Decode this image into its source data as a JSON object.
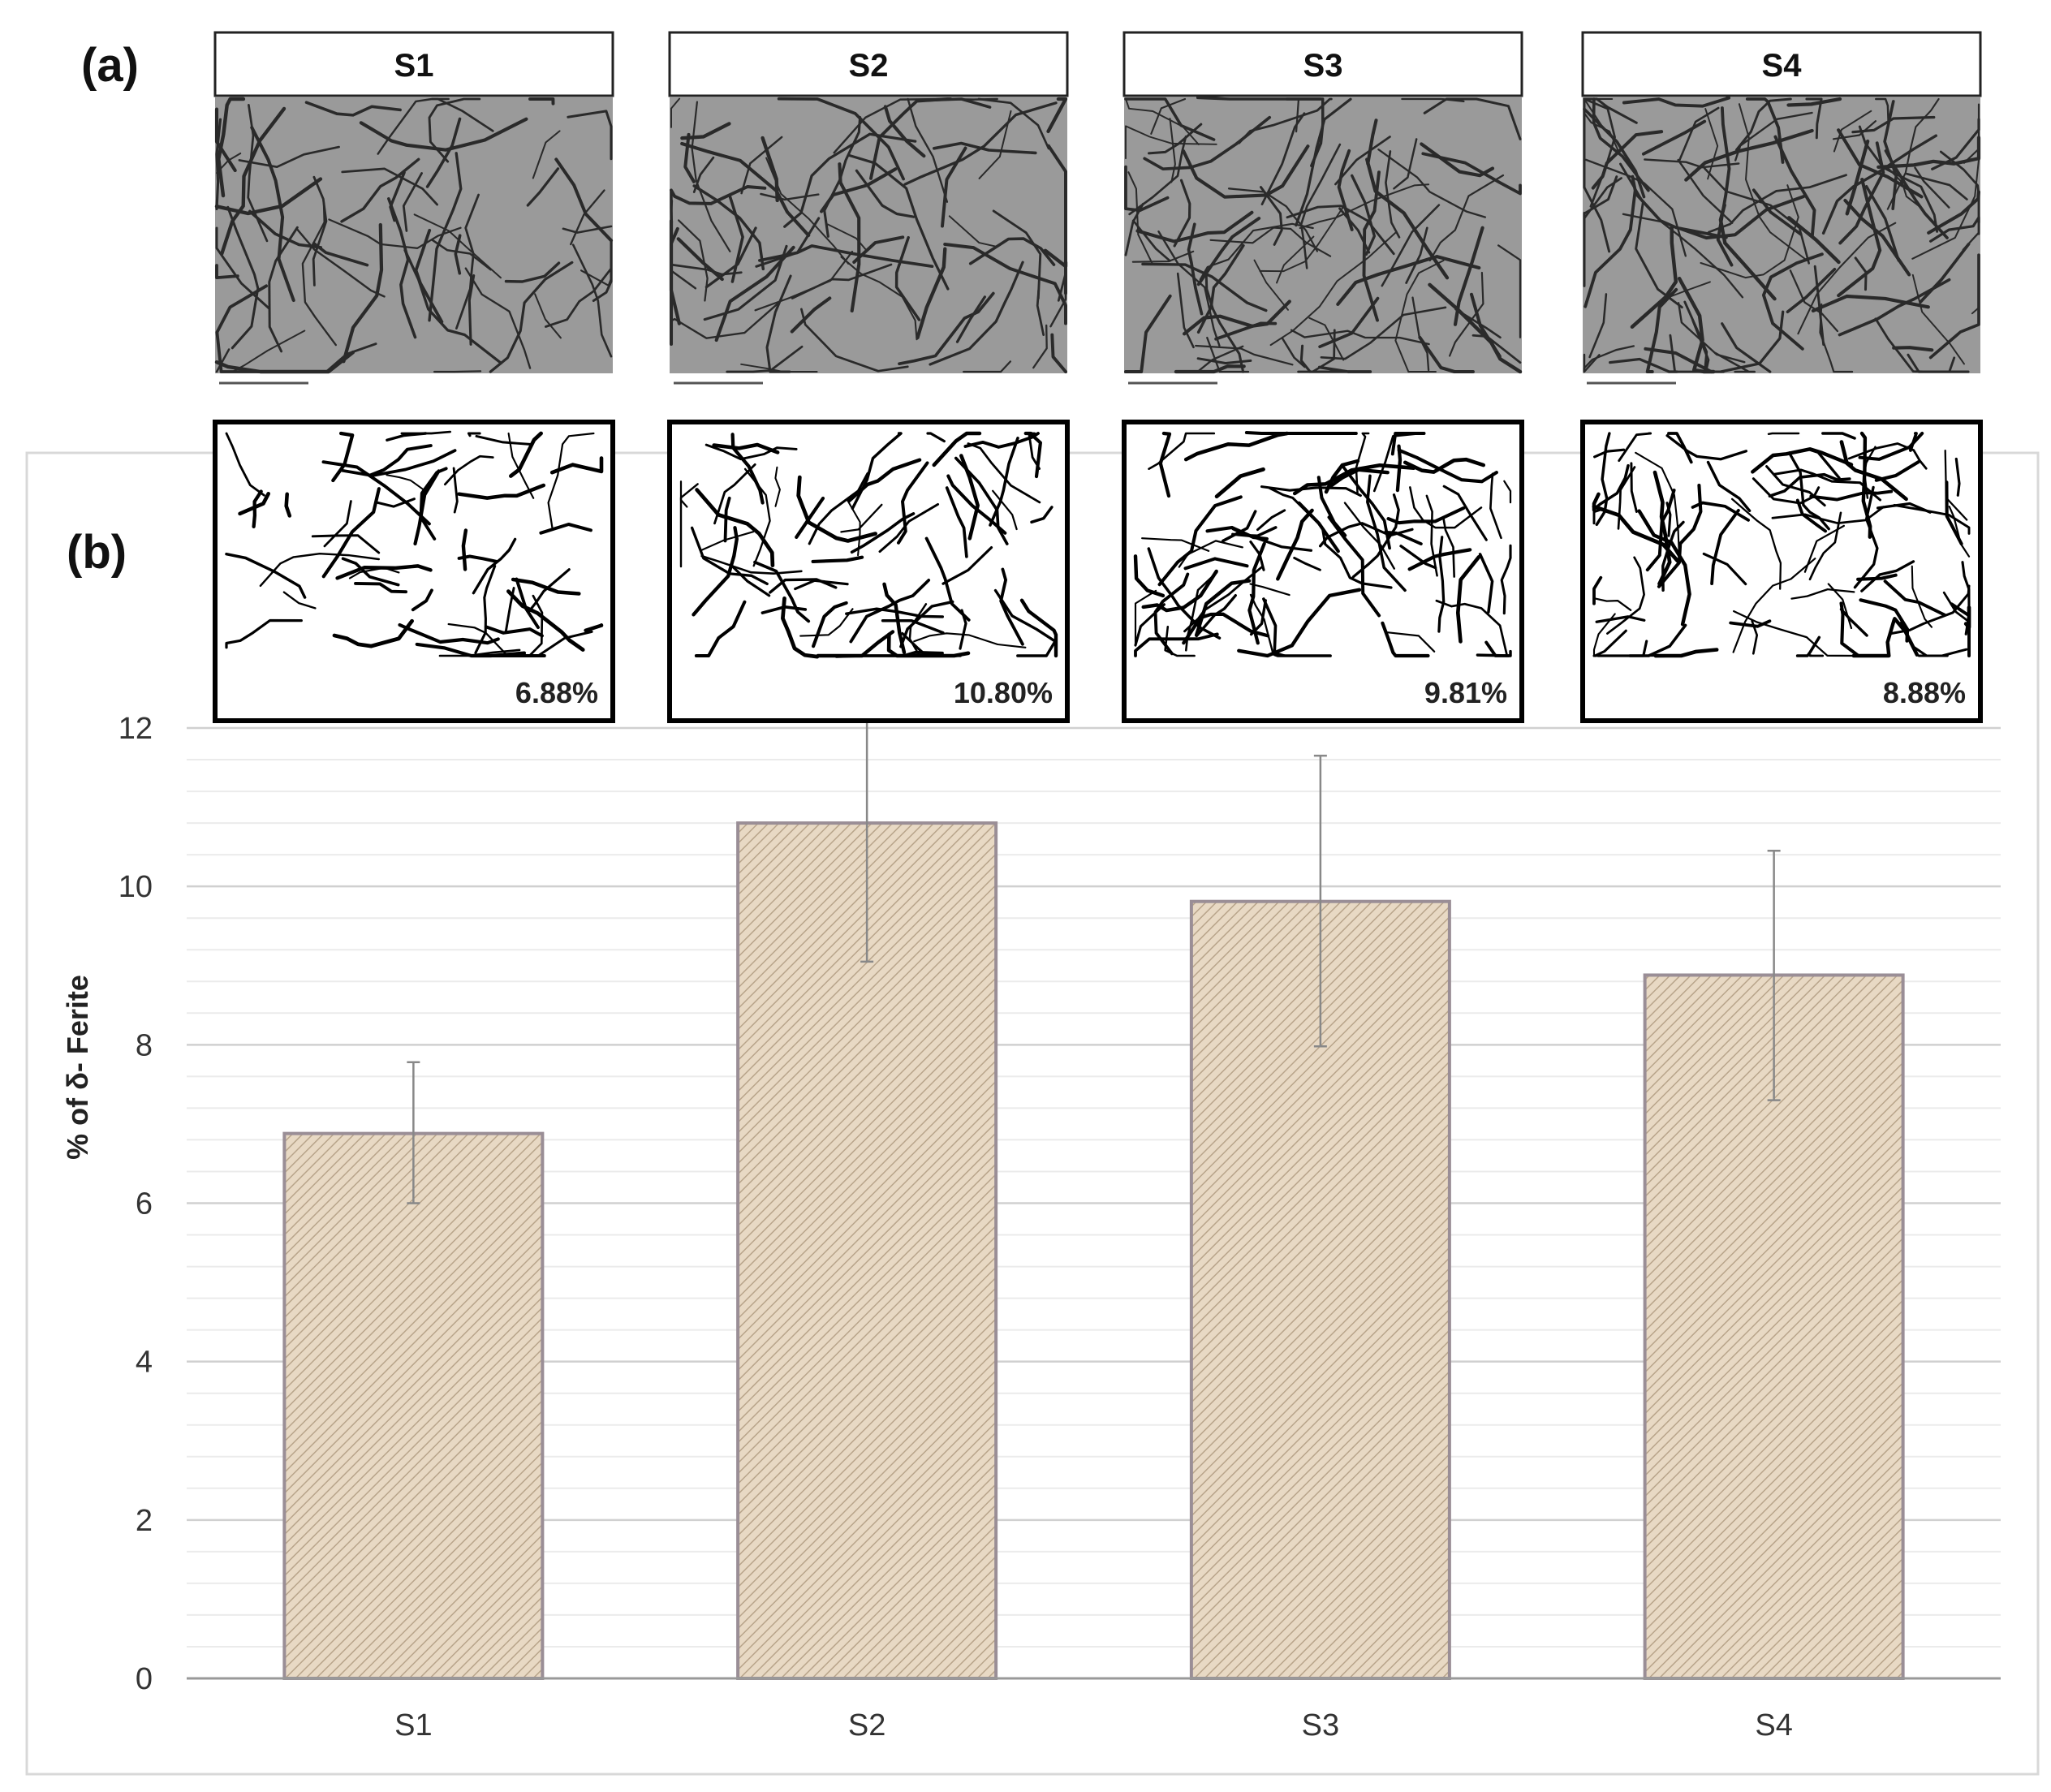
{
  "panels": {
    "a_label": "(a)",
    "b_label": "(b)"
  },
  "samples": [
    {
      "name": "S1",
      "ferrite_label": "6.88%"
    },
    {
      "name": "S2",
      "ferrite_label": "10.80%"
    },
    {
      "name": "S3",
      "ferrite_label": "9.81%"
    },
    {
      "name": "S4",
      "ferrite_label": "8.88%"
    }
  ],
  "colors": {
    "bar_fill": "#e8d9c4",
    "bar_hatch": "#b8a48a",
    "bar_border": "#9a8e96",
    "grid_major": "#d0d0d0",
    "grid_minor": "#ebebeb",
    "axis": "#999999",
    "micrograph_bg": "#9a9a9a",
    "micrograph_line": "#2a2a2a",
    "binary_line": "#000000",
    "error_bar": "#888888",
    "text": "#333333"
  },
  "chart_data": {
    "type": "bar",
    "categories": [
      "S1",
      "S2",
      "S3",
      "S4"
    ],
    "series": [
      {
        "values": [
          6.88,
          10.8,
          9.81,
          8.88
        ],
        "error_low": [
          6.0,
          9.05,
          7.98,
          7.3
        ],
        "error_high": [
          7.78,
          12.52,
          11.65,
          10.45
        ]
      }
    ],
    "title": "",
    "xlabel": "",
    "ylabel": "% of δ- Ferite",
    "ylim": [
      0,
      12
    ],
    "yticks": [
      0,
      2,
      4,
      6,
      8,
      10,
      12
    ],
    "minor_grid_step": 0.4,
    "grid": true,
    "legend": "none"
  }
}
